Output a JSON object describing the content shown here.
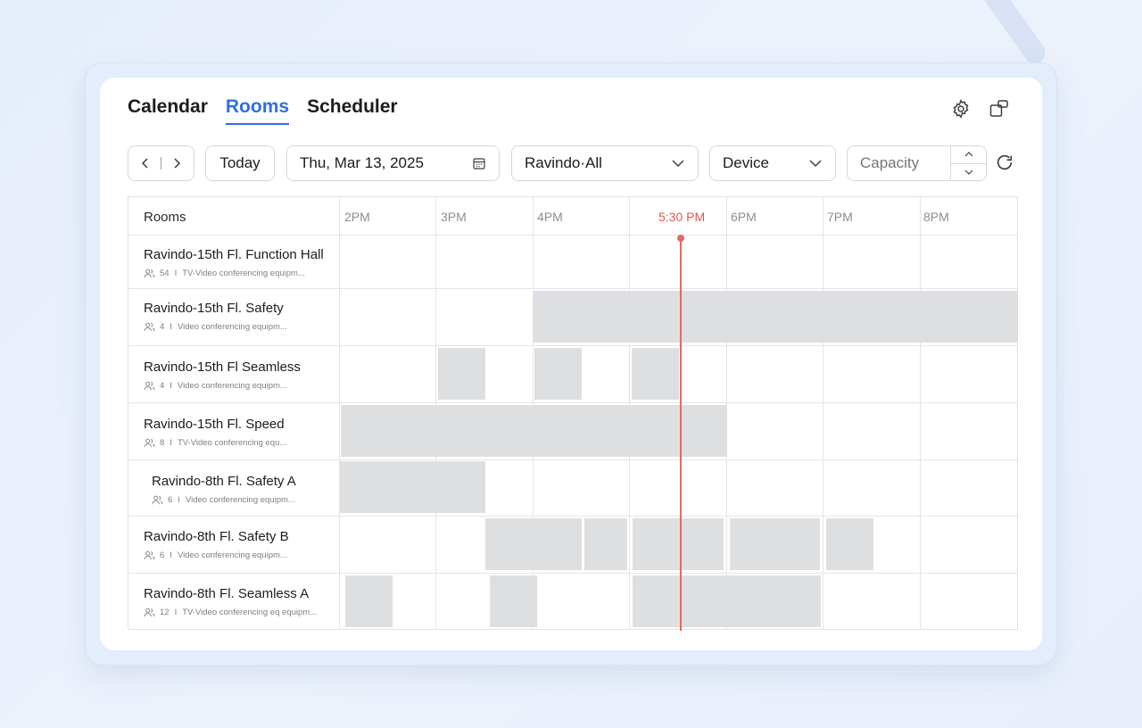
{
  "tabs": [
    {
      "label": "Calendar",
      "active": false
    },
    {
      "label": "Rooms",
      "active": true
    },
    {
      "label": "Scheduler",
      "active": false
    }
  ],
  "icons": {
    "settings": "gear-icon",
    "popout": "window-popout-icon",
    "refresh": "refresh-icon",
    "calendar": "calendar-icon",
    "people": "people-icon"
  },
  "toolbar": {
    "today_label": "Today",
    "date_value": "Thu, Mar 13, 2025",
    "location_value": "Ravindo·All",
    "device_value": "Device",
    "capacity_placeholder": "Capacity"
  },
  "grid": {
    "rooms_header": "Rooms",
    "hours": [
      "2PM",
      "3PM",
      "4PM",
      "5:30 PM",
      "6PM",
      "7PM",
      "8PM"
    ],
    "current_time": "5:30 PM",
    "rooms": [
      {
        "name": "Ravindo-15th Fl. Function Hall",
        "capacity": "54",
        "equipment": "TV-Video conferencing  equipm..."
      },
      {
        "name": "Ravindo-15th Fl. Safety",
        "capacity": "4",
        "equipment": "Video conferencing equipm..."
      },
      {
        "name": "Ravindo-15th Fl Seamless",
        "capacity": "4",
        "equipment": "Video conferencing equipm..."
      },
      {
        "name": "Ravindo-15th Fl. Speed",
        "capacity": "8",
        "equipment": "TV-Video conferencing equ..."
      },
      {
        "name": "Ravindo-8th Fl. Safety A",
        "capacity": "6",
        "equipment": "Video conferencing equipm..."
      },
      {
        "name": "Ravindo-8th Fl. Safety B",
        "capacity": "6",
        "equipment": "Video conferencing equipm..."
      },
      {
        "name": "Ravindo-8th Fl. Seamless A",
        "capacity": "12",
        "equipment": "TV-Video conferencing eq equipm..."
      }
    ]
  },
  "colors": {
    "accent": "#2f6fe4",
    "now_line": "#e26b63",
    "booking": "#dedfe1"
  }
}
